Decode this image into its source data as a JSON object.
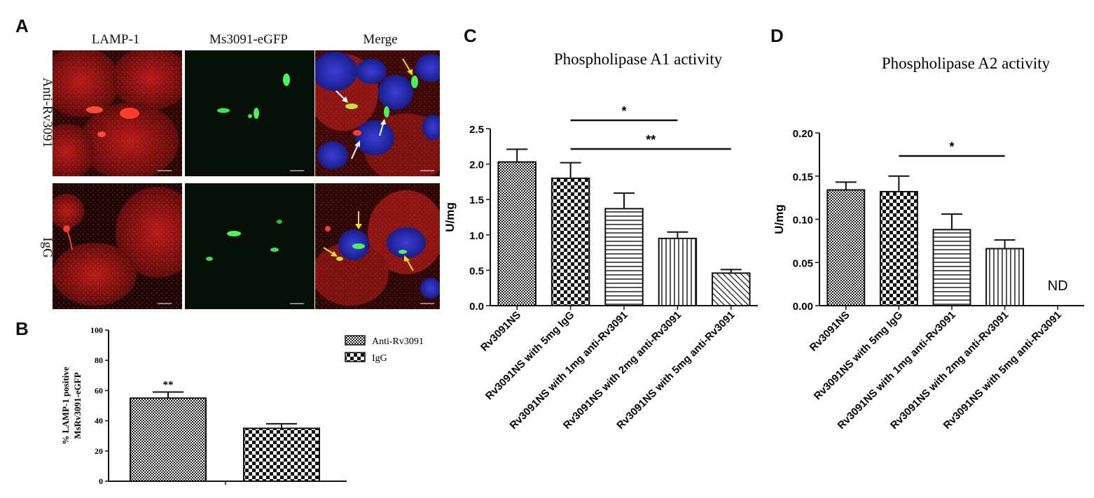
{
  "panel_labels": {
    "a": "A",
    "b": "B",
    "c": "C",
    "d": "D"
  },
  "panel_a": {
    "columns": [
      "LAMP-1",
      "Ms3091-eGFP",
      "Merge"
    ],
    "rows": [
      "Anti-Rv3091",
      "IgG"
    ],
    "colors": {
      "lamp": "#c8221e",
      "gfp": "#3ee04a",
      "dapi": "#2b2fb8",
      "arrow_white": "#ffffff",
      "arrow_yellow": "#f2e01c"
    }
  },
  "chart_data": [
    {
      "id": "B",
      "type": "bar",
      "title": "",
      "ylabel": "% LAMP-1 positive MsRv3091-eGFP",
      "ylabel_lines": [
        "% LAMP-1 positive",
        "MsRv3091-eGFP"
      ],
      "ylim": [
        0,
        100
      ],
      "yticks": [
        0,
        20,
        40,
        60,
        80,
        100
      ],
      "categories": [
        "Anti-Rv3091",
        "IgG"
      ],
      "values": [
        55,
        35
      ],
      "errors": [
        4,
        3
      ],
      "legend": [
        "Anti-Rv3091",
        "IgG"
      ],
      "legend_position": "top-right",
      "annotations": [
        {
          "bar": 0,
          "text": "**"
        }
      ]
    },
    {
      "id": "C",
      "type": "bar",
      "title": "Phospholipase A1 activity",
      "ylabel": "U/mg",
      "ylim": [
        0,
        2.5
      ],
      "yticks": [
        "0.0",
        "0.5",
        "1.0",
        "1.5",
        "2.0",
        "2.5"
      ],
      "categories": [
        "Rv3091NS",
        "Rv3091NS with 5mg IgG",
        "Rv3091NS with 1mg anti-Rv3091",
        "Rv3091NS with 2mg anti-Rv3091",
        "Rv3091NS with 5mg anti-Rv3091"
      ],
      "values": [
        2.03,
        1.8,
        1.37,
        0.95,
        0.46
      ],
      "errors": [
        0.18,
        0.22,
        0.22,
        0.09,
        0.05
      ],
      "significance": [
        {
          "from": 1,
          "to": 3,
          "text": "*"
        },
        {
          "from": 1,
          "to": 4,
          "text": "**"
        }
      ]
    },
    {
      "id": "D",
      "type": "bar",
      "title": "Phospholipase A2 activity",
      "ylabel": "U/mg",
      "ylim": [
        0,
        0.2
      ],
      "yticks": [
        "0.00",
        "0.05",
        "0.10",
        "0.15",
        "0.20"
      ],
      "categories": [
        "Rv3091NS",
        "Rv3091NS with 5mg IgG",
        "Rv3091NS with 1mg anti-Rv3091",
        "Rv3091NS with 2mg anti-Rv3091",
        "Rv3091NS with 5mg anti-Rv3091"
      ],
      "values": [
        0.134,
        0.132,
        0.088,
        0.066,
        null
      ],
      "errors": [
        0.009,
        0.018,
        0.018,
        0.01,
        null
      ],
      "value_labels": [
        "",
        "",
        "",
        "",
        "ND"
      ],
      "significance": [
        {
          "from": 1,
          "to": 3,
          "text": "*"
        }
      ]
    }
  ]
}
